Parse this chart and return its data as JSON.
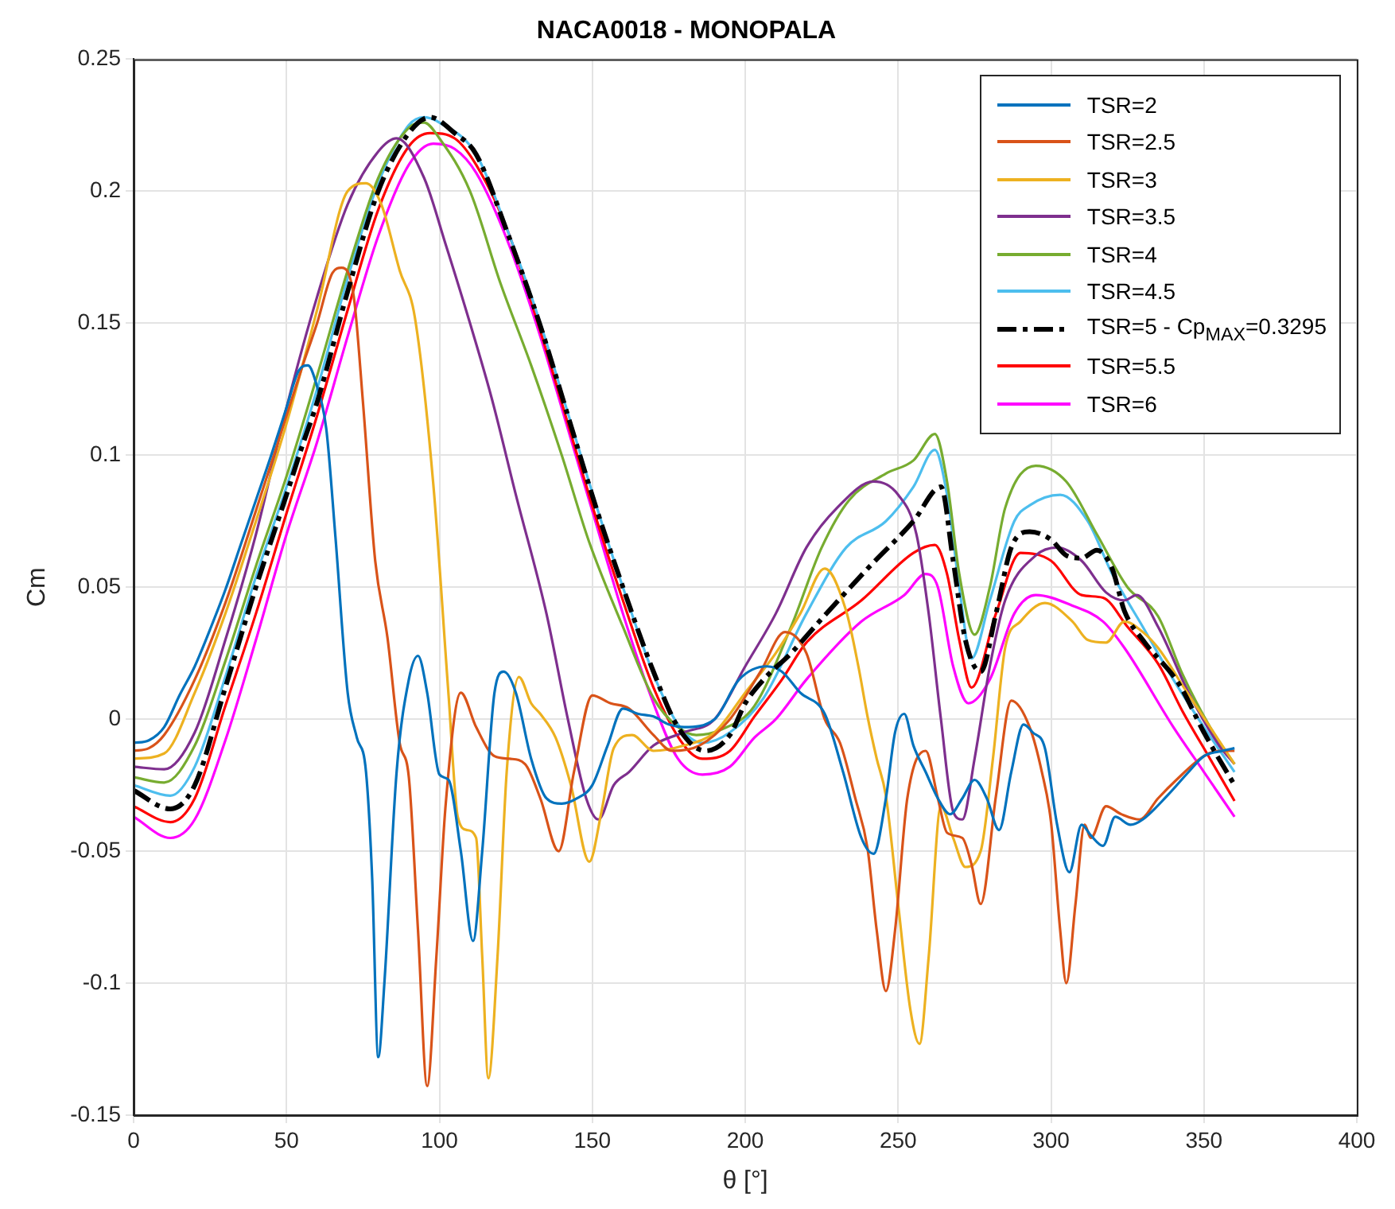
{
  "chart_data": {
    "type": "line",
    "title": "NACA0018 - MONOPALA",
    "xlabel": "θ [°]",
    "ylabel": "Cm",
    "xlim": [
      0,
      400
    ],
    "xticks": [
      0,
      50,
      100,
      150,
      200,
      250,
      300,
      350,
      400
    ],
    "ylim": [
      -0.15,
      0.25
    ],
    "yticks": [
      -0.15,
      -0.1,
      -0.05,
      0,
      0.05,
      0.1,
      0.15,
      0.2,
      0.25
    ],
    "grid": true,
    "legend": "top right",
    "marker": "none",
    "series": [
      {
        "name": "TSR=2",
        "color": "#0072bd",
        "x": [
          0,
          5,
          10,
          15,
          20,
          25,
          30,
          35,
          40,
          45,
          50,
          54,
          57,
          60,
          63,
          66,
          70,
          73,
          76,
          78,
          80,
          82,
          86,
          90,
          93,
          96,
          100,
          103,
          107,
          111,
          114,
          118,
          121,
          125,
          130,
          135,
          140,
          145,
          150,
          155,
          160,
          165,
          170,
          175,
          180,
          190,
          198,
          207,
          212,
          218,
          226,
          232,
          238,
          242,
          246,
          249,
          252,
          255,
          259,
          263,
          267,
          271,
          275,
          279,
          283,
          287,
          291,
          294,
          298,
          302,
          306,
          310,
          313,
          317,
          321,
          326,
          330,
          338,
          345,
          350,
          356,
          360
        ],
        "values": [
          -0.009,
          -0.008,
          -0.003,
          0.009,
          0.02,
          0.034,
          0.049,
          0.066,
          0.083,
          0.1,
          0.118,
          0.132,
          0.134,
          0.126,
          0.11,
          0.069,
          0.01,
          -0.007,
          -0.02,
          -0.06,
          -0.128,
          -0.1,
          -0.02,
          0.015,
          0.024,
          0.01,
          -0.021,
          -0.023,
          -0.05,
          -0.084,
          -0.05,
          0.01,
          0.018,
          0.01,
          -0.015,
          -0.03,
          -0.032,
          -0.03,
          -0.025,
          -0.01,
          0.004,
          0.002,
          0.001,
          -0.002,
          -0.003,
          0.0,
          0.015,
          0.02,
          0.018,
          0.01,
          0.002,
          -0.02,
          -0.045,
          -0.051,
          -0.03,
          -0.005,
          0.002,
          -0.01,
          -0.02,
          -0.03,
          -0.036,
          -0.03,
          -0.023,
          -0.03,
          -0.042,
          -0.02,
          -0.002,
          -0.005,
          -0.011,
          -0.04,
          -0.058,
          -0.04,
          -0.044,
          -0.048,
          -0.037,
          -0.04,
          -0.038,
          -0.029,
          -0.02,
          -0.014,
          -0.012,
          -0.011
        ]
      },
      {
        "name": "TSR=2.5",
        "color": "#d95319",
        "x": [
          0,
          5,
          10,
          20,
          30,
          40,
          50,
          55,
          60,
          65,
          68,
          72,
          75,
          79,
          83,
          87,
          90,
          93,
          96,
          99,
          102,
          107,
          112,
          118,
          123,
          128,
          133,
          139,
          144,
          150,
          156,
          162,
          170,
          176,
          185,
          195,
          205,
          213,
          220,
          226,
          231,
          236,
          240,
          243,
          246,
          249,
          253,
          259,
          263,
          266,
          271,
          274,
          277,
          282,
          287,
          293,
          297,
          300,
          303,
          305,
          308,
          311,
          313,
          318,
          323,
          329,
          335,
          341,
          350,
          355,
          360
        ],
        "values": [
          -0.012,
          -0.011,
          -0.006,
          0.015,
          0.044,
          0.079,
          0.115,
          0.133,
          0.15,
          0.169,
          0.171,
          0.16,
          0.12,
          0.06,
          0.031,
          -0.009,
          -0.022,
          -0.08,
          -0.139,
          -0.09,
          -0.033,
          0.01,
          -0.003,
          -0.014,
          -0.015,
          -0.017,
          -0.03,
          -0.05,
          -0.02,
          0.009,
          0.006,
          0.004,
          -0.006,
          -0.012,
          -0.01,
          0.0,
          0.018,
          0.033,
          0.025,
          0.0,
          -0.009,
          -0.03,
          -0.049,
          -0.08,
          -0.103,
          -0.08,
          -0.03,
          -0.012,
          -0.03,
          -0.043,
          -0.045,
          -0.055,
          -0.07,
          -0.029,
          0.007,
          -0.003,
          -0.02,
          -0.039,
          -0.08,
          -0.1,
          -0.07,
          -0.04,
          -0.045,
          -0.033,
          -0.036,
          -0.038,
          -0.03,
          -0.023,
          -0.014,
          -0.012,
          -0.012
        ]
      },
      {
        "name": "TSR=3",
        "color": "#edb120",
        "x": [
          0,
          10,
          20,
          30,
          40,
          50,
          60,
          70,
          76,
          81,
          87,
          92,
          98,
          103,
          106,
          109,
          112,
          114,
          116,
          119,
          122,
          126,
          130,
          133,
          138,
          143,
          149,
          153,
          157,
          163,
          170,
          180,
          190,
          200,
          210,
          218,
          226,
          233,
          237,
          240,
          243,
          246,
          250,
          254,
          257,
          260,
          264,
          268,
          272,
          277,
          281,
          285,
          290,
          298,
          307,
          312,
          318,
          324,
          330,
          335,
          344,
          352,
          360
        ],
        "values": [
          -0.015,
          -0.013,
          0.01,
          0.04,
          0.075,
          0.112,
          0.155,
          0.2,
          0.203,
          0.195,
          0.17,
          0.152,
          0.089,
          0.009,
          -0.037,
          -0.042,
          -0.045,
          -0.09,
          -0.136,
          -0.09,
          -0.02,
          0.016,
          0.006,
          0.002,
          -0.007,
          -0.025,
          -0.054,
          -0.035,
          -0.011,
          -0.006,
          -0.012,
          -0.01,
          -0.005,
          0.01,
          0.025,
          0.04,
          0.057,
          0.041,
          0.02,
          0.001,
          -0.015,
          -0.029,
          -0.07,
          -0.11,
          -0.123,
          -0.09,
          -0.033,
          -0.045,
          -0.056,
          -0.05,
          -0.015,
          0.027,
          0.037,
          0.044,
          0.037,
          0.03,
          0.029,
          0.037,
          0.033,
          0.027,
          0.011,
          -0.003,
          -0.017
        ]
      },
      {
        "name": "TSR=3.5",
        "color": "#7e2f8e",
        "x": [
          0,
          10,
          20,
          30,
          40,
          50,
          60,
          70,
          80,
          86,
          95,
          102,
          110,
          117,
          125,
          135,
          142,
          148,
          152,
          157,
          162,
          170,
          180,
          190,
          200,
          210,
          220,
          230,
          242,
          250,
          256,
          260,
          264,
          268,
          271,
          275,
          280,
          285,
          295,
          302,
          310,
          318,
          324,
          328,
          335,
          345,
          355,
          360
        ],
        "values": [
          -0.018,
          -0.019,
          -0.005,
          0.03,
          0.07,
          0.118,
          0.16,
          0.195,
          0.215,
          0.22,
          0.205,
          0.18,
          0.15,
          0.122,
          0.085,
          0.04,
          0.0,
          -0.03,
          -0.038,
          -0.025,
          -0.02,
          -0.01,
          -0.005,
          0.0,
          0.02,
          0.04,
          0.065,
          0.08,
          0.09,
          0.085,
          0.07,
          0.04,
          0.0,
          -0.035,
          -0.038,
          -0.015,
          0.02,
          0.045,
          0.062,
          0.065,
          0.06,
          0.048,
          0.045,
          0.047,
          0.035,
          0.01,
          -0.01,
          -0.017
        ]
      },
      {
        "name": "TSR=4",
        "color": "#77ac30",
        "x": [
          0,
          10,
          20,
          30,
          40,
          50,
          60,
          70,
          80,
          90,
          95,
          100,
          110,
          120,
          130,
          140,
          149,
          160,
          170,
          178,
          184,
          192,
          203,
          215,
          225,
          234,
          246,
          255,
          262,
          266,
          270,
          275,
          280,
          285,
          295,
          305,
          315,
          325,
          335,
          343,
          352,
          360
        ],
        "values": [
          -0.022,
          -0.024,
          -0.01,
          0.022,
          0.058,
          0.092,
          0.13,
          0.17,
          0.205,
          0.224,
          0.226,
          0.22,
          0.2,
          0.165,
          0.134,
          0.1,
          0.067,
          0.035,
          0.008,
          -0.003,
          -0.006,
          -0.004,
          0.005,
          0.035,
          0.065,
          0.083,
          0.093,
          0.098,
          0.108,
          0.09,
          0.055,
          0.032,
          0.05,
          0.08,
          0.096,
          0.09,
          0.07,
          0.05,
          0.039,
          0.017,
          -0.003,
          -0.017
        ]
      },
      {
        "name": "TSR=4.5",
        "color": "#4dbeee",
        "x": [
          0,
          12,
          20,
          30,
          40,
          50,
          60,
          70,
          80,
          90,
          95,
          100,
          112,
          122,
          133,
          142,
          151,
          160,
          170,
          178,
          186,
          195,
          206,
          220,
          233,
          246,
          255,
          262,
          266,
          270,
          274,
          280,
          288,
          293,
          303,
          312,
          320,
          330,
          340,
          350,
          360
        ],
        "values": [
          -0.025,
          -0.029,
          -0.018,
          0.016,
          0.054,
          0.088,
          0.125,
          0.167,
          0.203,
          0.225,
          0.228,
          0.226,
          0.214,
          0.186,
          0.15,
          0.116,
          0.082,
          0.05,
          0.017,
          -0.002,
          -0.009,
          -0.005,
          0.008,
          0.04,
          0.065,
          0.075,
          0.088,
          0.102,
          0.085,
          0.05,
          0.023,
          0.045,
          0.075,
          0.081,
          0.085,
          0.075,
          0.055,
          0.035,
          0.015,
          -0.003,
          -0.02
        ]
      },
      {
        "name": "TSR=5 - Cp$_{MAX}$=0.3295",
        "color": "#000000",
        "line_style": "dashed",
        "x": [
          0,
          12,
          20,
          30,
          40,
          50,
          55,
          60,
          70,
          80,
          90,
          97,
          105,
          112,
          122,
          133,
          142,
          151,
          160,
          170,
          178,
          187,
          195,
          200,
          206,
          215,
          225,
          240,
          255,
          264,
          268,
          272,
          277,
          282,
          287,
          293,
          300,
          305,
          310,
          315,
          320,
          324,
          330,
          342,
          350,
          360
        ],
        "values": [
          -0.027,
          -0.034,
          -0.025,
          0.012,
          0.05,
          0.085,
          0.103,
          0.12,
          0.162,
          0.2,
          0.222,
          0.228,
          0.222,
          0.214,
          0.185,
          0.149,
          0.115,
          0.081,
          0.05,
          0.018,
          -0.003,
          -0.012,
          -0.006,
          0.006,
          0.015,
          0.025,
          0.038,
          0.057,
          0.075,
          0.088,
          0.06,
          0.03,
          0.018,
          0.04,
          0.065,
          0.071,
          0.068,
          0.062,
          0.061,
          0.064,
          0.057,
          0.041,
          0.03,
          0.013,
          -0.005,
          -0.025
        ]
      },
      {
        "name": "TSR=5.5",
        "color": "#ff0000",
        "x": [
          0,
          12,
          20,
          30,
          40,
          50,
          60,
          70,
          80,
          90,
          97,
          105,
          112,
          122,
          133,
          142,
          151,
          160,
          170,
          180,
          186,
          195,
          203,
          212,
          220,
          238,
          255,
          262,
          266,
          270,
          274,
          282,
          290,
          300,
          310,
          317,
          325,
          335,
          343,
          352,
          360
        ],
        "values": [
          -0.033,
          -0.039,
          -0.03,
          0.005,
          0.04,
          0.078,
          0.115,
          0.155,
          0.193,
          0.217,
          0.222,
          0.22,
          0.21,
          0.186,
          0.147,
          0.112,
          0.077,
          0.045,
          0.012,
          -0.01,
          -0.015,
          -0.012,
          0.001,
          0.015,
          0.029,
          0.045,
          0.063,
          0.066,
          0.055,
          0.03,
          0.012,
          0.04,
          0.063,
          0.06,
          0.047,
          0.046,
          0.035,
          0.021,
          0.003,
          -0.015,
          -0.031
        ]
      },
      {
        "name": "TSR=6",
        "color": "#ff00ff",
        "x": [
          0,
          12,
          20,
          30,
          40,
          50,
          60,
          70,
          80,
          90,
          98,
          105,
          112,
          122,
          133,
          142,
          151,
          160,
          170,
          178,
          186,
          195,
          203,
          210,
          220,
          238,
          252,
          259,
          263,
          268,
          273,
          280,
          288,
          295,
          307,
          317,
          324,
          340,
          350,
          360
        ],
        "values": [
          -0.037,
          -0.045,
          -0.038,
          -0.008,
          0.03,
          0.07,
          0.105,
          0.145,
          0.183,
          0.21,
          0.218,
          0.216,
          0.207,
          0.182,
          0.145,
          0.11,
          0.075,
          0.04,
          0.006,
          -0.015,
          -0.021,
          -0.018,
          -0.007,
          0.0,
          0.015,
          0.037,
          0.047,
          0.055,
          0.05,
          0.02,
          0.006,
          0.015,
          0.04,
          0.047,
          0.043,
          0.037,
          0.027,
          -0.003,
          -0.02,
          -0.037
        ]
      }
    ]
  }
}
